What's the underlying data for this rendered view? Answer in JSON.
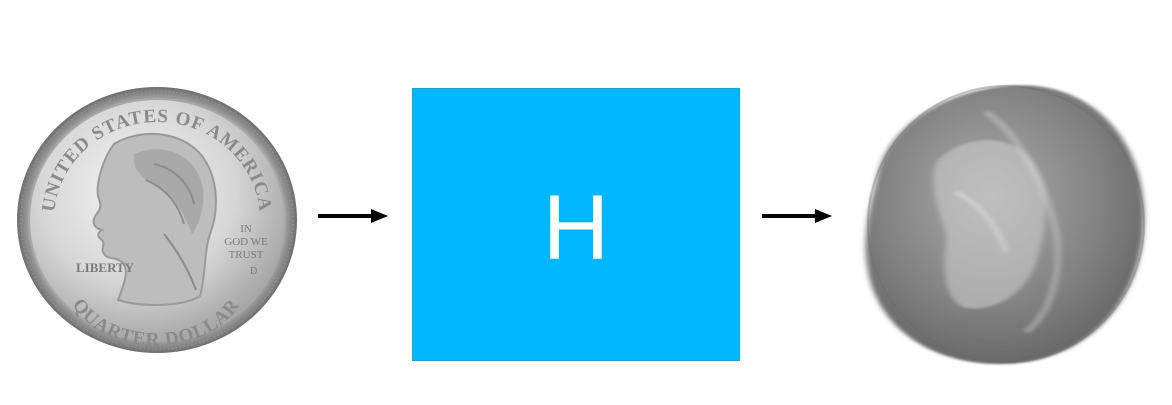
{
  "diagram": {
    "operator_label": "H",
    "colors": {
      "operator_fill": "#00b7ff",
      "arrow": "#000000",
      "coin_silver": "#c9c9c9",
      "blur_gray": "#8a8a8a"
    }
  },
  "input_coin": {
    "top_legend": "UNITED STATES OF AMERICA",
    "motto": [
      "IN",
      "GOD WE",
      "TRUST"
    ],
    "liberty": "LIBERTY",
    "mint_mark": "D",
    "bottom_legend": "QUARTER DOLLAR"
  },
  "icons": {
    "arrow_in": "right-arrow-icon",
    "arrow_out": "right-arrow-icon"
  }
}
